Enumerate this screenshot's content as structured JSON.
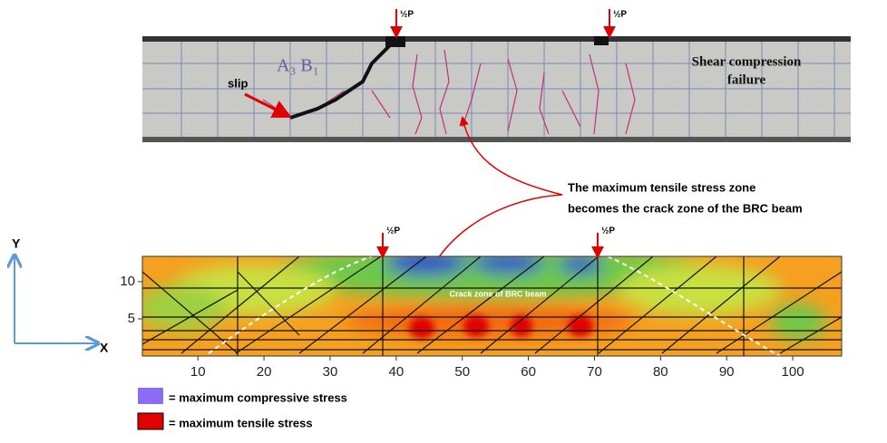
{
  "photo": {
    "load_labels": [
      "½P",
      "½P"
    ],
    "specimen": "A₃ B₁",
    "slip": "slip",
    "failure_mode": [
      "Shear compression",
      "failure"
    ]
  },
  "annotation": [
    "The maximum tensile stress zone",
    "becomes the crack zone of the BRC beam"
  ],
  "contour_plot": {
    "load_labels": [
      "½P",
      "½P"
    ],
    "crack_zone_label": "Crack zone of BRC beam",
    "xlim": [
      1.6,
      107.4
    ],
    "ylim": [
      0,
      13.4
    ],
    "xticks": [
      10,
      20,
      30,
      40,
      50,
      60,
      70,
      80,
      90,
      100
    ],
    "yticks": [
      5,
      10
    ]
  },
  "axes_icon": {
    "y": "Y",
    "x": "X"
  },
  "legend": [
    {
      "color": "#8a6cf5",
      "label": "= maximum compressive stress"
    },
    {
      "color": "#e00000",
      "label": "= maximum tensile stress"
    }
  ]
}
